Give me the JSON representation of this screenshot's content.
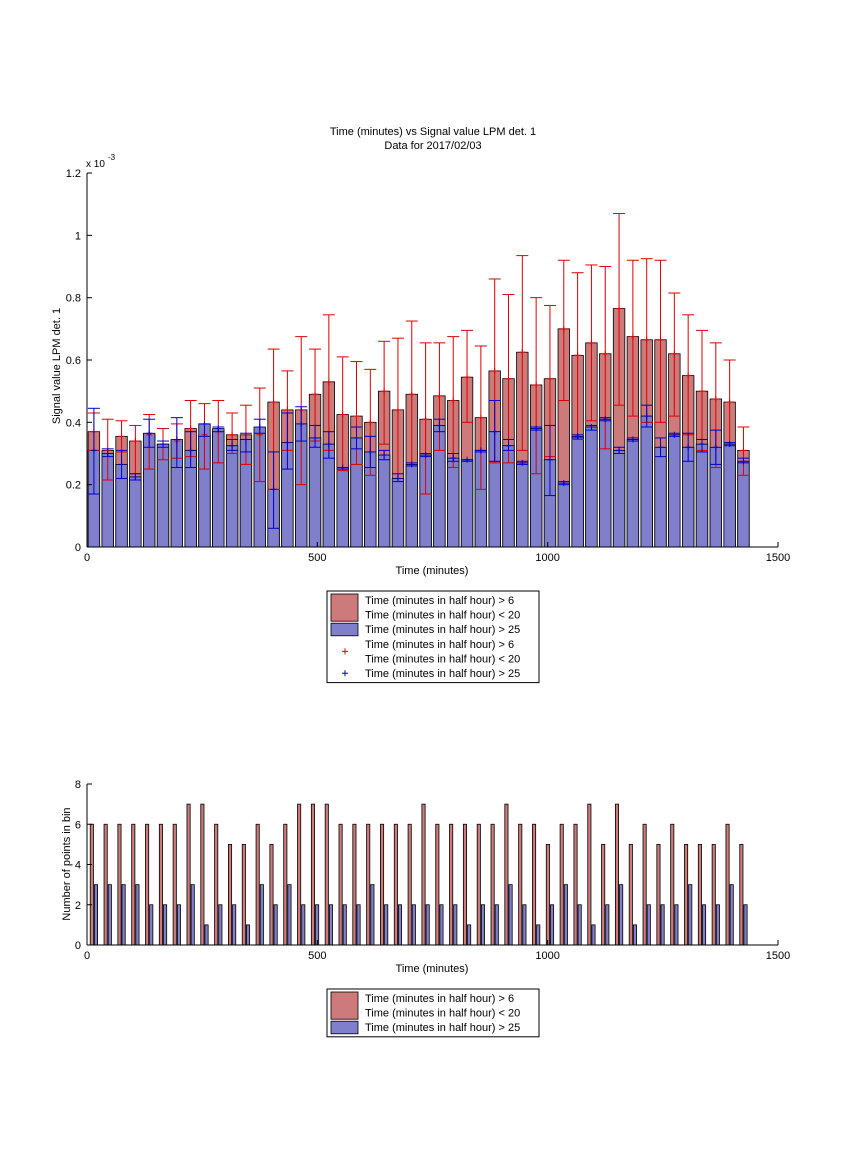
{
  "chart_data": [
    {
      "type": "bar",
      "title": "Time (minutes) vs Signal value LPM det. 1",
      "subtitle": "Data for 2017/02/03",
      "xlabel": "Time (minutes)",
      "ylabel": "Signal value LPM det. 1",
      "y_exponent_label": "x 10",
      "y_exponent_power": "-3",
      "xlim": [
        0,
        1500
      ],
      "ylim": [
        0,
        1.2
      ],
      "x_ticks": [
        0,
        500,
        1000,
        1500
      ],
      "y_ticks": [
        0,
        0.2,
        0.4,
        0.6,
        0.8,
        1,
        1.2
      ],
      "bar_width": 25,
      "grid": false,
      "legend_position": "below",
      "legend_entries": [
        {
          "kind": "bar",
          "color": "#cc7a7a",
          "lines": [
            "Time (minutes in half hour) > 6",
            "Time (minutes in half hour) < 20"
          ]
        },
        {
          "kind": "bar",
          "color": "#7f7fcc",
          "lines": [
            "Time (minutes in half hour) > 25"
          ]
        },
        {
          "kind": "marker",
          "color": "#dd0000",
          "lines": [
            "Time (minutes in half hour) > 6",
            "Time (minutes in half hour) < 20"
          ]
        },
        {
          "kind": "marker",
          "color": "#0000cc",
          "lines": [
            "Time (minutes in half hour) > 25"
          ]
        }
      ],
      "x": [
        15,
        45,
        75,
        105,
        135,
        165,
        195,
        225,
        255,
        285,
        315,
        345,
        375,
        405,
        435,
        465,
        495,
        525,
        555,
        585,
        615,
        645,
        675,
        705,
        735,
        765,
        795,
        825,
        855,
        885,
        915,
        945,
        975,
        1005,
        1035,
        1065,
        1095,
        1125,
        1155,
        1185,
        1215,
        1245,
        1275,
        1305,
        1335,
        1365,
        1395,
        1425
      ],
      "series": [
        {
          "name": "Time (minutes in half hour) > 6 / Time (minutes in half hour) < 20",
          "color": "#cc7a7a",
          "values": [
            0.37,
            0.31,
            0.355,
            0.34,
            0.36,
            0.33,
            0.34,
            0.38,
            0.36,
            0.37,
            0.36,
            0.36,
            0.36,
            0.465,
            0.44,
            0.44,
            0.49,
            0.53,
            0.425,
            0.42,
            0.4,
            0.5,
            0.44,
            0.49,
            0.41,
            0.485,
            0.47,
            0.545,
            0.415,
            0.565,
            0.54,
            0.625,
            0.52,
            0.54,
            0.7,
            0.615,
            0.655,
            0.62,
            0.765,
            0.675,
            0.665,
            0.665,
            0.62,
            0.55,
            0.5,
            0.475,
            0.465,
            0.31
          ],
          "error_low": [
            0.31,
            0.215,
            0.305,
            0.235,
            0.25,
            0.28,
            0.285,
            0.29,
            0.25,
            0.27,
            0.3,
            0.265,
            0.21,
            0.185,
            0.31,
            0.2,
            0.34,
            0.31,
            0.245,
            0.265,
            0.23,
            0.33,
            0.21,
            0.26,
            0.17,
            0.31,
            0.255,
            0.4,
            0.185,
            0.27,
            0.27,
            0.31,
            0.235,
            0.29,
            0.47,
            0.345,
            0.405,
            0.315,
            0.455,
            0.42,
            0.4,
            0.4,
            0.42,
            0.36,
            0.31,
            0.255,
            0.335,
            0.23
          ],
          "error_high": [
            0.43,
            0.41,
            0.405,
            0.39,
            0.425,
            0.38,
            0.395,
            0.47,
            0.46,
            0.47,
            0.43,
            0.455,
            0.51,
            0.635,
            0.565,
            0.675,
            0.635,
            0.745,
            0.61,
            0.595,
            0.57,
            0.66,
            0.67,
            0.725,
            0.655,
            0.655,
            0.675,
            0.695,
            0.645,
            0.86,
            0.81,
            0.935,
            0.8,
            0.775,
            0.92,
            0.88,
            0.905,
            0.9,
            1.07,
            0.92,
            0.925,
            0.92,
            0.815,
            0.745,
            0.695,
            0.655,
            0.6,
            0.385
          ]
        },
        {
          "name": "Time (minutes in half hour) > 25",
          "color": "#7f7fcc",
          "values": [
            0.31,
            0.3,
            0.265,
            0.225,
            0.365,
            0.33,
            0.345,
            0.31,
            0.395,
            0.38,
            0.325,
            0.345,
            0.385,
            0.185,
            0.335,
            0.395,
            0.35,
            0.33,
            0.255,
            0.35,
            0.305,
            0.295,
            0.22,
            0.265,
            0.295,
            0.39,
            0.285,
            0.28,
            0.31,
            0.37,
            0.325,
            0.27,
            0.38,
            0.28,
            0.205,
            0.355,
            0.385,
            0.41,
            0.31,
            0.345,
            0.42,
            0.32,
            0.36,
            0.32,
            0.33,
            0.32,
            0.33,
            0.275
          ],
          "error_low": [
            0.17,
            0.29,
            0.22,
            0.215,
            0.32,
            0.32,
            0.255,
            0.255,
            0.355,
            0.37,
            0.31,
            0.305,
            0.365,
            0.06,
            0.25,
            0.34,
            0.32,
            0.285,
            0.25,
            0.315,
            0.255,
            0.28,
            0.21,
            0.26,
            0.29,
            0.37,
            0.275,
            0.275,
            0.305,
            0.275,
            0.31,
            0.265,
            0.375,
            0.165,
            0.2,
            0.35,
            0.375,
            0.405,
            0.3,
            0.34,
            0.385,
            0.29,
            0.355,
            0.275,
            0.305,
            0.265,
            0.325,
            0.27
          ],
          "error_high": [
            0.445,
            0.315,
            0.31,
            0.235,
            0.41,
            0.34,
            0.415,
            0.37,
            0.395,
            0.385,
            0.345,
            0.365,
            0.41,
            0.305,
            0.43,
            0.45,
            0.39,
            0.37,
            0.255,
            0.385,
            0.355,
            0.31,
            0.235,
            0.27,
            0.3,
            0.41,
            0.3,
            0.28,
            0.31,
            0.47,
            0.345,
            0.275,
            0.385,
            0.39,
            0.21,
            0.36,
            0.39,
            0.415,
            0.32,
            0.35,
            0.455,
            0.35,
            0.365,
            0.365,
            0.345,
            0.375,
            0.335,
            0.285
          ]
        }
      ]
    },
    {
      "type": "bar",
      "xlabel": "Time (minutes)",
      "ylabel": "Number of points in bin",
      "xlim": [
        0,
        1500
      ],
      "ylim": [
        0,
        8
      ],
      "x_ticks": [
        0,
        500,
        1000,
        1500
      ],
      "y_ticks": [
        0,
        2,
        4,
        6,
        8
      ],
      "bar_width": 7,
      "bar_offset": 4.5,
      "grid": false,
      "legend_position": "below",
      "legend_entries": [
        {
          "kind": "bar",
          "color": "#cc7a7a",
          "lines": [
            "Time (minutes in half hour) > 6",
            "Time (minutes in half hour) < 20"
          ]
        },
        {
          "kind": "bar",
          "color": "#7f7fcc",
          "lines": [
            "Time (minutes in half hour) > 25"
          ]
        }
      ],
      "x": [
        15,
        45,
        75,
        105,
        135,
        165,
        195,
        225,
        255,
        285,
        315,
        345,
        375,
        405,
        435,
        465,
        495,
        525,
        555,
        585,
        615,
        645,
        675,
        705,
        735,
        765,
        795,
        825,
        855,
        885,
        915,
        945,
        975,
        1005,
        1035,
        1065,
        1095,
        1125,
        1155,
        1185,
        1215,
        1245,
        1275,
        1305,
        1335,
        1365,
        1395,
        1425
      ],
      "series": [
        {
          "name": "Time (minutes in half hour) > 6 / Time (minutes in half hour) < 20",
          "color": "#cc7a7a",
          "values": [
            6,
            6,
            6,
            6,
            6,
            6,
            6,
            7,
            7,
            6,
            5,
            5,
            6,
            5,
            6,
            7,
            7,
            7,
            6,
            6,
            6,
            6,
            6,
            6,
            7,
            6,
            6,
            6,
            6,
            6,
            7,
            6,
            6,
            5,
            6,
            6,
            7,
            5,
            7,
            5,
            6,
            5,
            6,
            5,
            5,
            5,
            6,
            5
          ]
        },
        {
          "name": "Time (minutes in half hour) > 25",
          "color": "#7f7fcc",
          "values": [
            3,
            3,
            3,
            3,
            2,
            2,
            2,
            3,
            1,
            2,
            2,
            1,
            3,
            2,
            3,
            2,
            2,
            2,
            2,
            2,
            3,
            2,
            2,
            2,
            2,
            2,
            2,
            1,
            2,
            2,
            3,
            2,
            1,
            2,
            3,
            2,
            1,
            2,
            3,
            1,
            2,
            2,
            2,
            3,
            2,
            2,
            3,
            2
          ]
        }
      ]
    }
  ]
}
